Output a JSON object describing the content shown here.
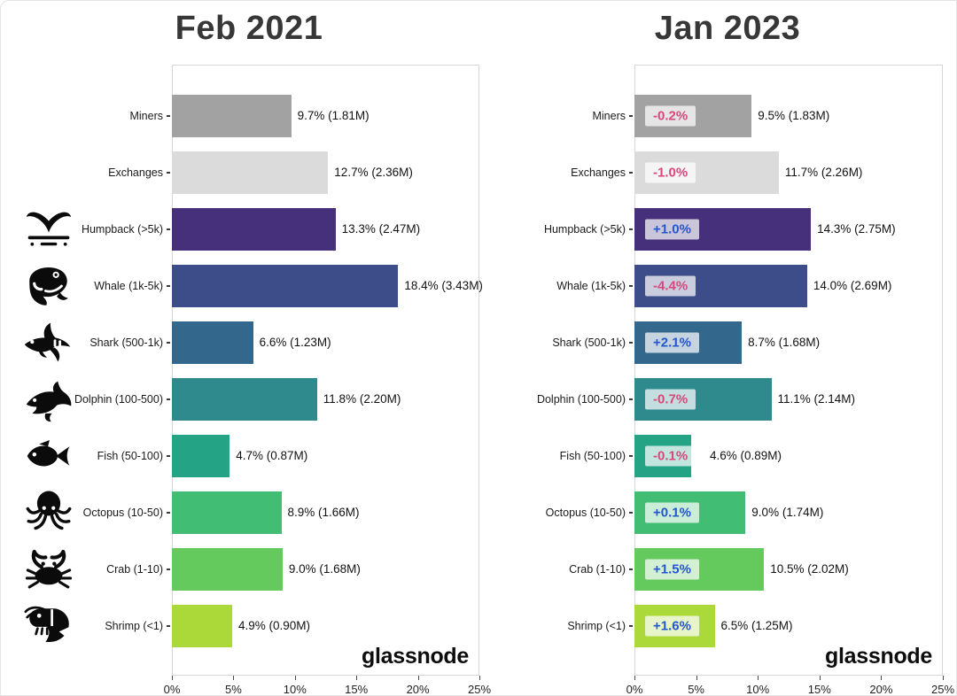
{
  "branding": {
    "logo": "glassnode"
  },
  "chart_data": [
    {
      "type": "bar",
      "title": "Feb 2021",
      "orientation": "horizontal",
      "xlim": [
        0,
        25
      ],
      "x_ticks": [
        "0%",
        "5%",
        "10%",
        "15%",
        "20%",
        "25%"
      ],
      "grid": false,
      "legend": "none",
      "categories": [
        "Miners",
        "Exchanges",
        "Humpback (>5k)",
        "Whale (1k-5k)",
        "Shark (500-1k)",
        "Dolphin (100-500)",
        "Fish (50-100)",
        "Octopus (10-50)",
        "Crab (1-10)",
        "Shrimp (<1)"
      ],
      "values": [
        9.7,
        12.7,
        13.3,
        18.4,
        6.6,
        11.8,
        4.7,
        8.9,
        9.0,
        4.9
      ],
      "value_labels": [
        "9.7% (1.81M)",
        "12.7% (2.36M)",
        "13.3% (2.47M)",
        "18.4% (3.43M)",
        "6.6% (1.23M)",
        "11.8% (2.20M)",
        "4.7% (0.87M)",
        "8.9% (1.66M)",
        "9.0% (1.68M)",
        "4.9% (0.90M)"
      ]
    },
    {
      "type": "bar",
      "title": "Jan 2023",
      "orientation": "horizontal",
      "xlim": [
        0,
        25
      ],
      "x_ticks": [
        "0%",
        "5%",
        "10%",
        "15%",
        "20%",
        "25%"
      ],
      "grid": false,
      "legend": "none",
      "categories": [
        "Miners",
        "Exchanges",
        "Humpback (>5k)",
        "Whale (1k-5k)",
        "Shark (500-1k)",
        "Dolphin (100-500)",
        "Fish (50-100)",
        "Octopus (10-50)",
        "Crab (1-10)",
        "Shrimp (<1)"
      ],
      "values": [
        9.5,
        11.7,
        14.3,
        14.0,
        8.7,
        11.1,
        4.6,
        9.0,
        10.5,
        6.5
      ],
      "value_labels": [
        "9.5% (1.83M)",
        "11.7% (2.26M)",
        "14.3% (2.75M)",
        "14.0% (2.69M)",
        "8.7% (1.68M)",
        "11.1% (2.14M)",
        "4.6% (0.89M)",
        "9.0% (1.74M)",
        "10.5% (2.02M)",
        "6.5% (1.25M)"
      ],
      "deltas": [
        "-0.2%",
        "-1.0%",
        "+1.0%",
        "-4.4%",
        "+2.1%",
        "-0.7%",
        "-0.1%",
        "+0.1%",
        "+1.5%",
        "+1.6%"
      ]
    }
  ],
  "colors": {
    "bar_colors": [
      "#a2a2a2",
      "#dbdbdb",
      "#46307c",
      "#3d4d8a",
      "#33678c",
      "#2e8a8c",
      "#25a385",
      "#41bd74",
      "#65ca5e",
      "#abd93a"
    ],
    "delta_negative": "#d8487b",
    "delta_positive": "#2456cf",
    "badge_bg": "rgba(255,255,255,0.72)",
    "title_color": "#373737",
    "icon_color": "#0b0b0b"
  },
  "sidebar_icons": {
    "start_row": 2,
    "items": [
      {
        "name": "humpback-whale-tail-icon",
        "category": "Humpback (>5k)"
      },
      {
        "name": "whale-icon",
        "category": "Whale (1k-5k)"
      },
      {
        "name": "shark-icon",
        "category": "Shark (500-1k)"
      },
      {
        "name": "dolphin-icon",
        "category": "Dolphin (100-500)"
      },
      {
        "name": "fish-icon",
        "category": "Fish (50-100)"
      },
      {
        "name": "octopus-icon",
        "category": "Octopus (10-50)"
      },
      {
        "name": "crab-icon",
        "category": "Crab (1-10)"
      },
      {
        "name": "shrimp-icon",
        "category": "Shrimp (<1)"
      }
    ]
  }
}
